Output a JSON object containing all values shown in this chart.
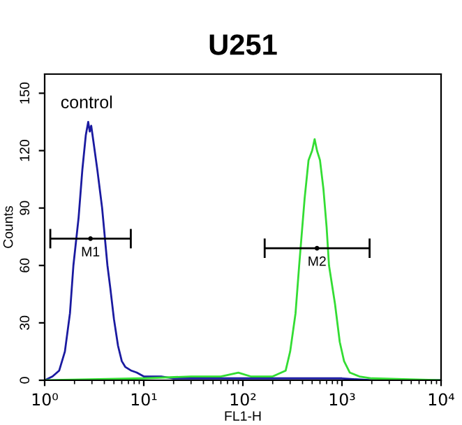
{
  "chart_data": {
    "type": "line",
    "title": "U251",
    "xlabel": "FL1-H",
    "ylabel": "Counts",
    "log": "x",
    "grid": false,
    "legend": false,
    "marker": "none",
    "xlim": [
      1,
      10000
    ],
    "xticks": [
      {
        "value": 1,
        "label": "10⁰"
      },
      {
        "value": 10,
        "label": "10¹"
      },
      {
        "value": 100,
        "label": "10²"
      },
      {
        "value": 1000,
        "label": "10³"
      },
      {
        "value": 10000,
        "label": "10⁴"
      }
    ],
    "ylim": [
      0,
      160
    ],
    "yticks": [
      0,
      30,
      60,
      90,
      120,
      150
    ],
    "series": [
      {
        "color": "#1a1aa0",
        "x": [
          1.0,
          1.2,
          1.4,
          1.6,
          1.8,
          1.95,
          2.2,
          2.4,
          2.6,
          2.75,
          2.85,
          2.95,
          3.1,
          3.4,
          3.8,
          4.3,
          4.6,
          5.0,
          5.5,
          6.0,
          6.5,
          7.5,
          8.5,
          10,
          15,
          20,
          40,
          80,
          150,
          300,
          600,
          1000,
          2000,
          10000
        ],
        "values": [
          0,
          2,
          5,
          15,
          35,
          60,
          85,
          110,
          128,
          135,
          130,
          133,
          125,
          110,
          90,
          60,
          48,
          32,
          18,
          10,
          7,
          5,
          4,
          2,
          2,
          1,
          1,
          1,
          1,
          1,
          1,
          1,
          0,
          0
        ]
      },
      {
        "color": "#33dd33",
        "x": [
          1,
          10,
          30,
          60,
          90,
          120,
          200,
          270,
          300,
          340,
          370,
          420,
          460,
          500,
          530,
          560,
          600,
          650,
          700,
          740,
          850,
          950,
          1050,
          1200,
          1500,
          2000,
          10000
        ],
        "values": [
          0,
          1,
          2,
          2,
          4,
          2,
          2,
          5,
          15,
          35,
          60,
          95,
          115,
          120,
          126,
          120,
          115,
          100,
          80,
          60,
          40,
          20,
          10,
          4,
          2,
          1,
          0
        ]
      },
      {
        "type": "scatter",
        "color": "#000000",
        "x": [
          2.9
        ],
        "values": [
          74
        ],
        "xerrors": [
          [
            1.14,
            7.4
          ]
        ]
      },
      {
        "type": "scatter",
        "color": "#000000",
        "x": [
          560
        ],
        "values": [
          69
        ],
        "xerrors": [
          [
            166,
            1900
          ]
        ]
      }
    ],
    "annotations": [
      "control",
      {
        "text": "M1",
        "x": 2.9,
        "y": 74
      },
      {
        "text": "M2",
        "x": 560,
        "y": 69
      }
    ]
  }
}
